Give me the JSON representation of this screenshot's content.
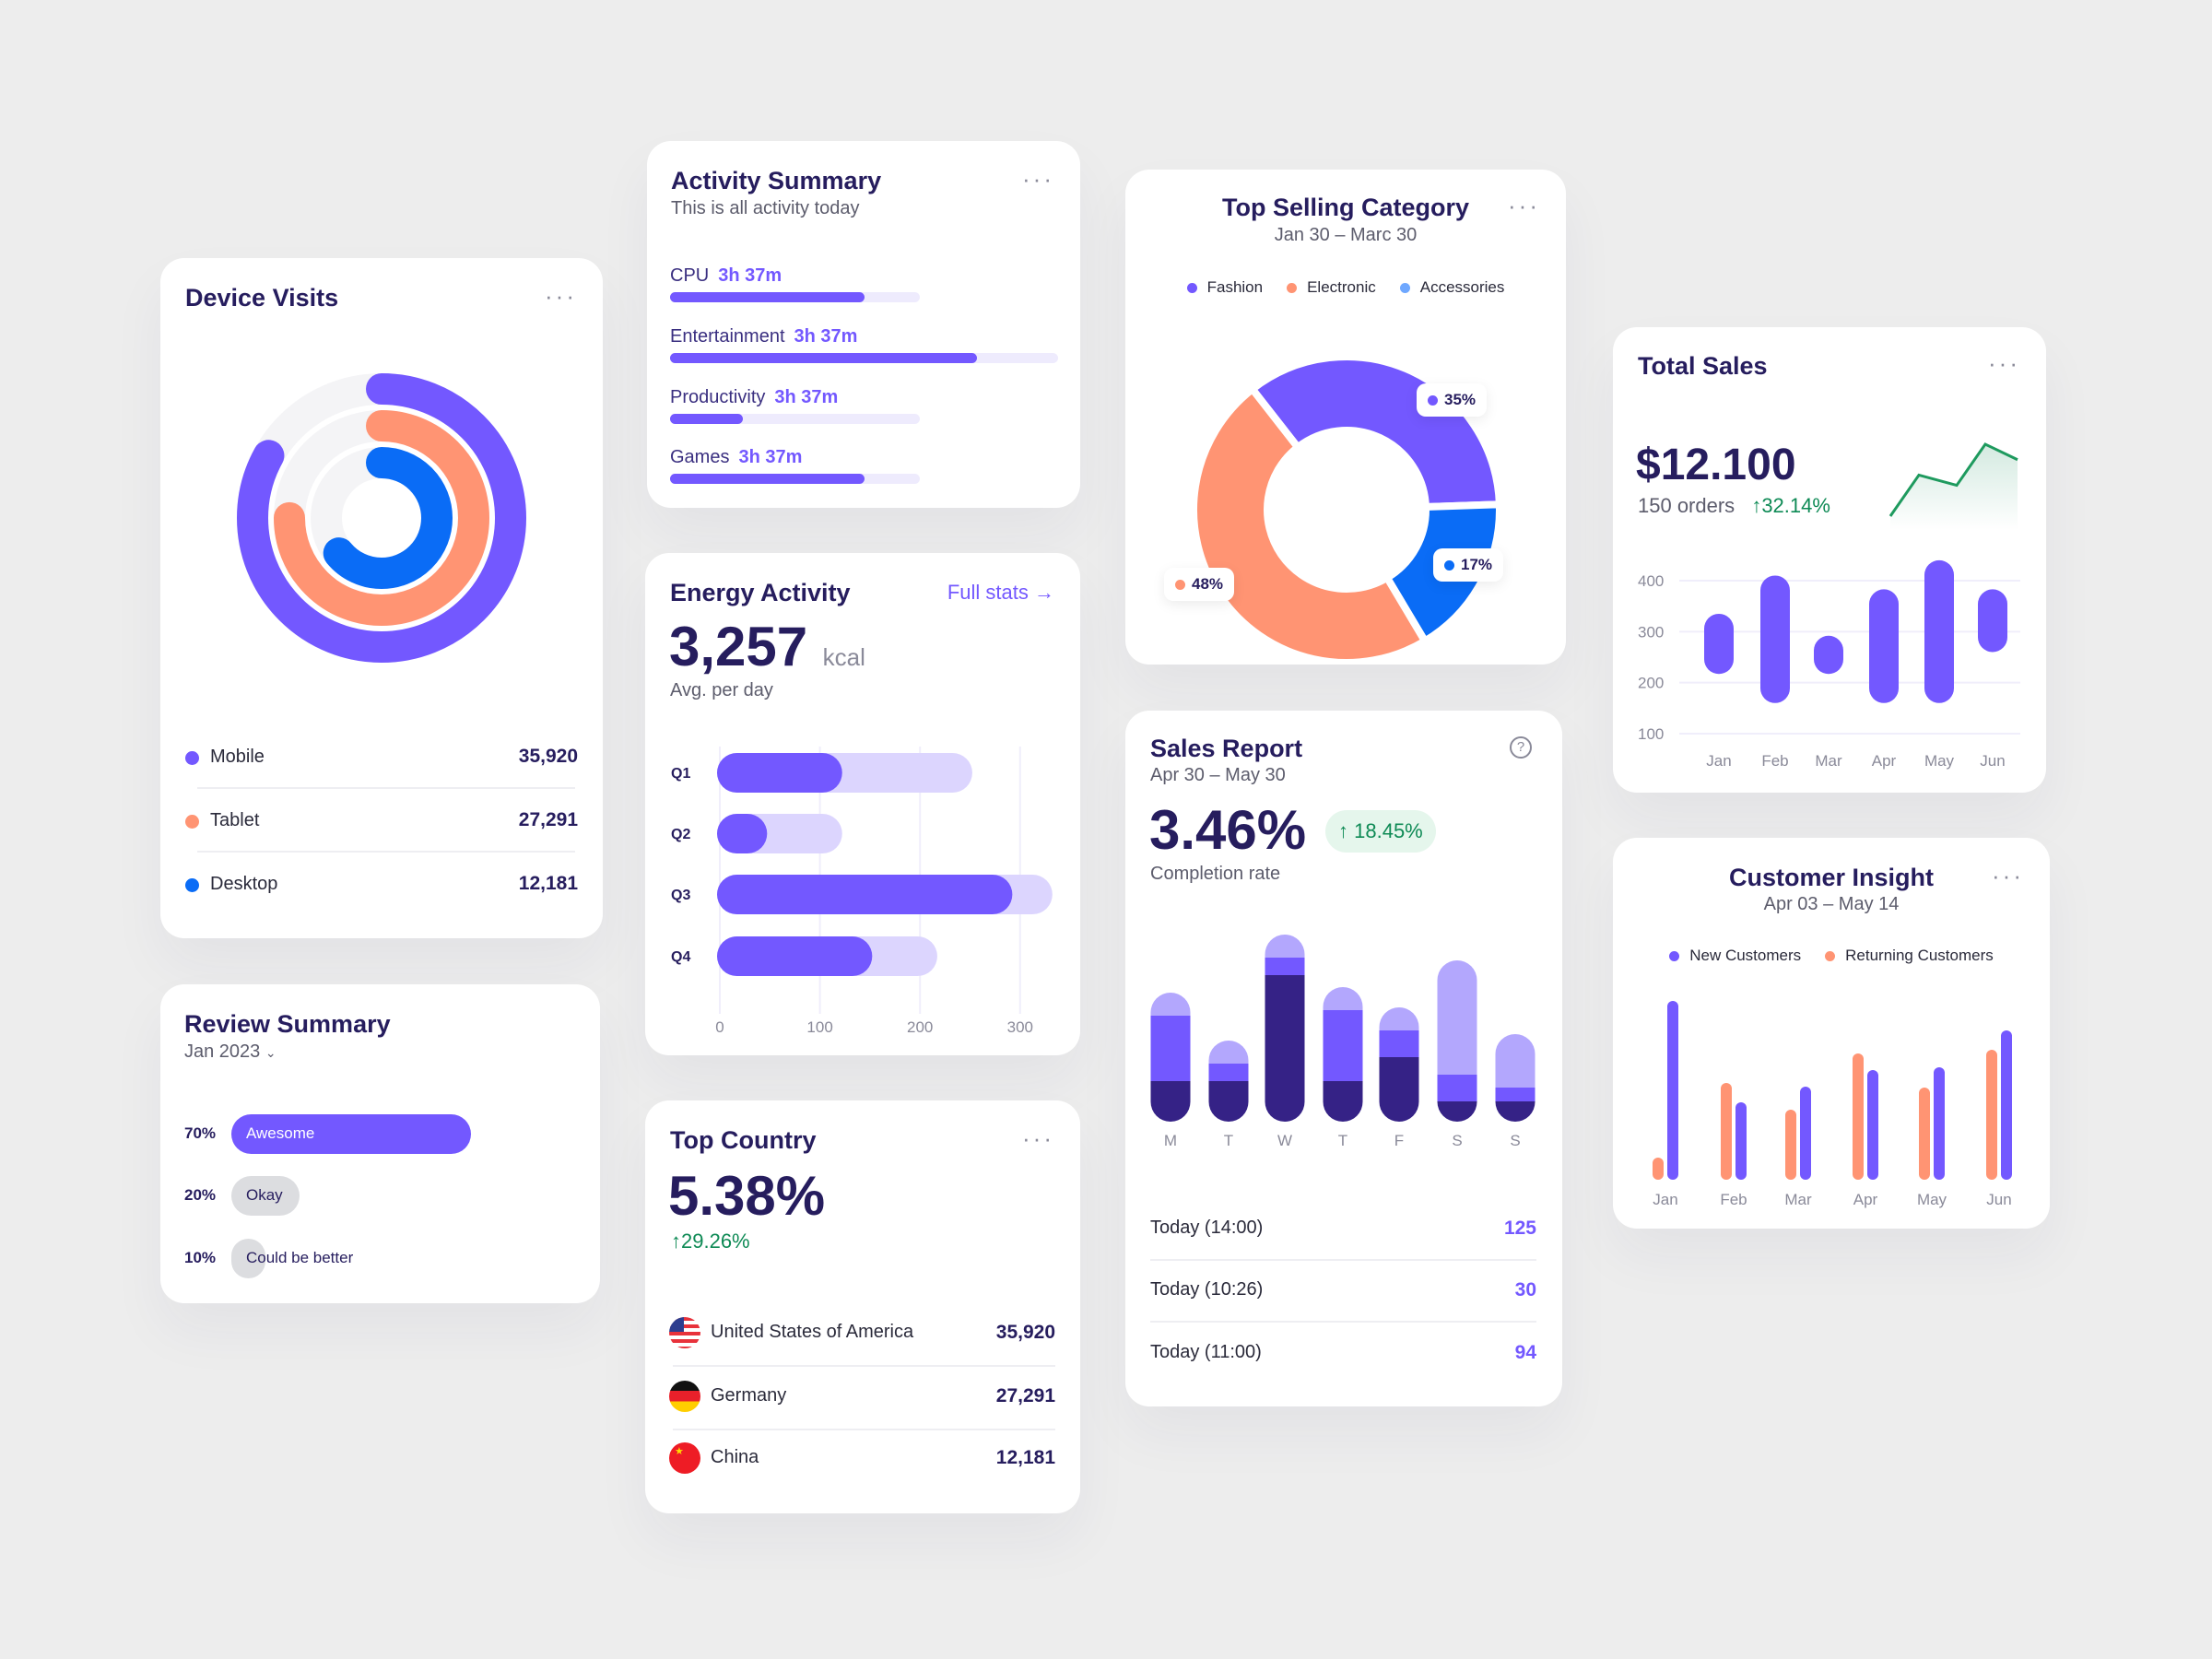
{
  "colors": {
    "primary": "#7358FF",
    "primary_light": "#DCD5FE",
    "navy": "#261D5E",
    "orange": "#FF9473",
    "blue": "#0A6CF6",
    "light_blue": "#6FA8FF",
    "green": "#0E8A55",
    "mid_purple": "#B3A7FD",
    "dark_purple": "#352286"
  },
  "device_visits": {
    "title": "Device Visits",
    "menu_icon": "more-horizontal-icon",
    "rings": [
      {
        "name": "Mobile",
        "fill": 0.83,
        "color": "#7358FF"
      },
      {
        "name": "Tablet",
        "fill": 0.75,
        "color": "#FF9473"
      },
      {
        "name": "Desktop",
        "fill": 0.64,
        "color": "#0A6CF6"
      }
    ],
    "items": [
      {
        "label": "Mobile",
        "value": "35,920",
        "color": "#7358FF"
      },
      {
        "label": "Tablet",
        "value": "27,291",
        "color": "#FF9473"
      },
      {
        "label": "Desktop",
        "value": "12,181",
        "color": "#0A6CF6"
      }
    ]
  },
  "review_summary": {
    "title": "Review Summary",
    "period": "Jan 2023",
    "period_icon": "chevron-down-icon",
    "items": [
      {
        "percent": "70%",
        "label": "Awesome",
        "value": 70
      },
      {
        "percent": "20%",
        "label": "Okay",
        "value": 20
      },
      {
        "percent": "10%",
        "label": "Could be better",
        "value": 10
      }
    ]
  },
  "activity_summary": {
    "title": "Activity Summary",
    "subtitle": "This is all activity today",
    "items": [
      {
        "label": "CPU",
        "time": "3h 37m",
        "progress": 0.78
      },
      {
        "label": "Entertainment",
        "time": "3h 37m",
        "progress": 0.79
      },
      {
        "label": "Productivity",
        "time": "3h 37m",
        "progress": 0.29
      },
      {
        "label": "Games",
        "time": "3h 37m",
        "progress": 0.78
      }
    ]
  },
  "energy_activity": {
    "title": "Energy Activity",
    "link": "Full stats",
    "link_icon": "arrow-right-icon",
    "value": "3,257",
    "unit": "kcal",
    "caption": "Avg. per day",
    "chart_data": {
      "type": "bar",
      "orientation": "horizontal",
      "categories": [
        "Q1",
        "Q2",
        "Q3",
        "Q4"
      ],
      "series": [
        {
          "values": [
            125,
            50,
            295,
            155
          ]
        },
        {
          "values": [
            255,
            125,
            335,
            220
          ]
        }
      ],
      "xticks": [
        "0",
        "100",
        "200",
        "300"
      ],
      "xlim": [
        0,
        340
      ],
      "grid": true
    }
  },
  "top_country": {
    "title": "Top Country",
    "value": "5.38%",
    "change": "29.26%",
    "items": [
      {
        "country": "United States of America",
        "value": "35,920",
        "flag": "us-flag-icon"
      },
      {
        "country": "Germany",
        "value": "27,291",
        "flag": "germany-flag-icon"
      },
      {
        "country": "China",
        "value": "12,181",
        "flag": "china-flag-icon"
      }
    ]
  },
  "top_selling": {
    "title": "Top Selling Category",
    "subtitle": "Jan 30 – Marc 30",
    "chart_data": {
      "type": "pie",
      "donut": true,
      "labels": [
        "Fashion",
        "Electronic",
        "Accessories"
      ],
      "values": [
        35,
        48,
        17
      ],
      "data_labels": [
        "35%",
        "48%",
        "17%"
      ],
      "colors": [
        "#7358FF",
        "#FF9473",
        "#0A6CF6"
      ],
      "legend_colors": [
        "#7358FF",
        "#FF9473",
        "#6FA8FF"
      ],
      "legend": "top"
    }
  },
  "sales_report": {
    "title": "Sales Report",
    "subtitle": "Apr 30 – May 30",
    "help_icon": "help-circle-icon",
    "value": "3.46%",
    "change": "18.45%",
    "caption": "Completion rate",
    "chart_data": {
      "type": "bar",
      "stacked": true,
      "categories": [
        "M",
        "T",
        "W",
        "T",
        "F",
        "S",
        "S"
      ],
      "series": [
        {
          "values": [
            44,
            44,
            159,
            44,
            70,
            22,
            22
          ],
          "color": "#352286"
        },
        {
          "values": [
            71,
            19,
            19,
            77,
            29,
            29,
            15
          ],
          "color": "#7358FF"
        },
        {
          "values": [
            25,
            25,
            25,
            25,
            25,
            124,
            58
          ],
          "color": "#B3A7FD"
        }
      ]
    },
    "rows": [
      {
        "label": "Today (14:00)",
        "value": "125"
      },
      {
        "label": "Today (10:26)",
        "value": "30"
      },
      {
        "label": "Today (11:00)",
        "value": "94"
      }
    ]
  },
  "total_sales": {
    "title": "Total Sales",
    "value": "$12.100",
    "orders": "150 orders",
    "change": "32.14%",
    "sparkline": [
      2,
      6,
      5,
      9,
      7.5
    ],
    "chart_data": {
      "type": "bar",
      "floating": true,
      "categories": [
        "Jan",
        "Feb",
        "Mar",
        "Apr",
        "May",
        "Jun"
      ],
      "ranges": [
        [
          217,
          335
        ],
        [
          160,
          410
        ],
        [
          217,
          292
        ],
        [
          160,
          383
        ],
        [
          160,
          440
        ],
        [
          260,
          383
        ]
      ],
      "yticks": [
        "400",
        "300",
        "200",
        "100"
      ],
      "ylim": [
        100,
        400
      ],
      "grid": true
    }
  },
  "customer_insight": {
    "title": "Customer Insight",
    "subtitle": "Apr 03 – May 14",
    "chart_data": {
      "type": "bar",
      "categories": [
        "Jan",
        "Feb",
        "Mar",
        "Apr",
        "May",
        "Jun"
      ],
      "series": [
        {
          "name": "New Customers",
          "values": [
            194,
            84,
            101,
            119,
            122,
            162
          ],
          "color": "#7358FF"
        },
        {
          "name": "Returning Customers",
          "values": [
            24,
            105,
            76,
            137,
            100,
            141
          ],
          "color": "#FF9473"
        }
      ],
      "legend": "top"
    }
  }
}
